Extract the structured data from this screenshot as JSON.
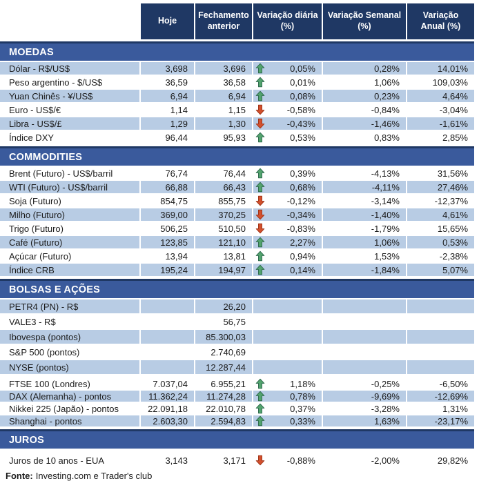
{
  "colors": {
    "header_bg": "#1F3864",
    "band_bg": "#3A5A9C",
    "row_blue": "#B8CCE4",
    "text": "#1B1B1B",
    "arrow_up_fill": "#53A36E",
    "arrow_up_stroke": "#2F6B4E",
    "arrow_down_fill": "#D2502D",
    "arrow_down_stroke": "#A03518"
  },
  "chart_data": {
    "type": "table",
    "columns": [
      "Hoje",
      "Fechamento anterior",
      "Variação diária (%)",
      "Variação Semanal (%)",
      "Variação Anual (%)"
    ],
    "sections": [
      {
        "title": "MOEDAS",
        "rows": [
          {
            "label": "Dólar - R$/US$",
            "hoje": "3,698",
            "fechamento_anterior": "3,696",
            "trend": "up",
            "variacao_diaria": "0,05%",
            "variacao_semanal": "0,28%",
            "variacao_anual": "14,01%",
            "shade": "blue",
            "size": "std"
          },
          {
            "label": "Peso argentino - $/US$",
            "hoje": "36,59",
            "fechamento_anterior": "36,58",
            "trend": "up",
            "variacao_diaria": "0,01%",
            "variacao_semanal": "1,06%",
            "variacao_anual": "109,03%",
            "shade": "white",
            "size": "std"
          },
          {
            "label": "Yuan Chinês - ¥/US$",
            "hoje": "6,94",
            "fechamento_anterior": "6,94",
            "trend": "up",
            "variacao_diaria": "0,08%",
            "variacao_semanal": "0,23%",
            "variacao_anual": "4,64%",
            "shade": "blue",
            "size": "std"
          },
          {
            "label": "Euro - US$/€",
            "hoje": "1,14",
            "fechamento_anterior": "1,15",
            "trend": "down",
            "variacao_diaria": "-0,58%",
            "variacao_semanal": "-0,84%",
            "variacao_anual": "-3,04%",
            "shade": "white",
            "size": "std"
          },
          {
            "label": "Libra - US$/£",
            "hoje": "1,29",
            "fechamento_anterior": "1,30",
            "trend": "down",
            "variacao_diaria": "-0,43%",
            "variacao_semanal": "-1,46%",
            "variacao_anual": "-1,61%",
            "shade": "blue",
            "size": "std"
          },
          {
            "label": "Índice DXY",
            "hoje": "96,44",
            "fechamento_anterior": "95,93",
            "trend": "up",
            "variacao_diaria": "0,53%",
            "variacao_semanal": "0,83%",
            "variacao_anual": "2,85%",
            "shade": "white",
            "size": "std"
          }
        ]
      },
      {
        "title": "COMMODITIES",
        "rows": [
          {
            "label": "Brent (Futuro) - US$/barril",
            "hoje": "76,74",
            "fechamento_anterior": "76,44",
            "trend": "up",
            "variacao_diaria": "0,39%",
            "variacao_semanal": "-4,13%",
            "variacao_anual": "31,56%",
            "shade": "white",
            "size": "std"
          },
          {
            "label": "WTI (Futuro) - US$/barril",
            "hoje": "66,88",
            "fechamento_anterior": "66,43",
            "trend": "up",
            "variacao_diaria": "0,68%",
            "variacao_semanal": "-4,11%",
            "variacao_anual": "27,46%",
            "shade": "blue",
            "size": "std"
          },
          {
            "label": "Soja (Futuro)",
            "hoje": "854,75",
            "fechamento_anterior": "855,75",
            "trend": "down",
            "variacao_diaria": "-0,12%",
            "variacao_semanal": "-3,14%",
            "variacao_anual": "-12,37%",
            "shade": "white",
            "size": "std"
          },
          {
            "label": "Milho (Futuro)",
            "hoje": "369,00",
            "fechamento_anterior": "370,25",
            "trend": "down",
            "variacao_diaria": "-0,34%",
            "variacao_semanal": "-1,40%",
            "variacao_anual": "4,61%",
            "shade": "blue",
            "size": "std"
          },
          {
            "label": "Trigo (Futuro)",
            "hoje": "506,25",
            "fechamento_anterior": "510,50",
            "trend": "down",
            "variacao_diaria": "-0,83%",
            "variacao_semanal": "-1,79%",
            "variacao_anual": "15,65%",
            "shade": "white",
            "size": "std"
          },
          {
            "label": "Café (Futuro)",
            "hoje": "123,85",
            "fechamento_anterior": "121,10",
            "trend": "up",
            "variacao_diaria": "2,27%",
            "variacao_semanal": "1,06%",
            "variacao_anual": "0,53%",
            "shade": "blue",
            "size": "std"
          },
          {
            "label": "Açúcar (Futuro)",
            "hoje": "13,94",
            "fechamento_anterior": "13,81",
            "trend": "up",
            "variacao_diaria": "0,94%",
            "variacao_semanal": "1,53%",
            "variacao_anual": "-2,38%",
            "shade": "white",
            "size": "std"
          },
          {
            "label": "Índice CRB",
            "hoje": "195,24",
            "fechamento_anterior": "194,97",
            "trend": "up",
            "variacao_diaria": "0,14%",
            "variacao_semanal": "-1,84%",
            "variacao_anual": "5,07%",
            "shade": "blue",
            "size": "std"
          }
        ]
      },
      {
        "title": "BOLSAS E AÇÕES",
        "rows": [
          {
            "label": "PETR4 (PN) - R$",
            "hoje": "",
            "fechamento_anterior": "26,20",
            "trend": "",
            "variacao_diaria": "",
            "variacao_semanal": "",
            "variacao_anual": "",
            "shade": "blue",
            "size": "tall"
          },
          {
            "label": "VALE3 - R$",
            "hoje": "",
            "fechamento_anterior": "56,75",
            "trend": "",
            "variacao_diaria": "",
            "variacao_semanal": "",
            "variacao_anual": "",
            "shade": "white",
            "size": "tall"
          },
          {
            "label": "Ibovespa (pontos)",
            "hoje": "",
            "fechamento_anterior": "85.300,03",
            "trend": "",
            "variacao_diaria": "",
            "variacao_semanal": "",
            "variacao_anual": "",
            "shade": "blue",
            "size": "tall"
          },
          {
            "label": "S&P 500 (pontos)",
            "hoje": "",
            "fechamento_anterior": "2.740,69",
            "trend": "",
            "variacao_diaria": "",
            "variacao_semanal": "",
            "variacao_anual": "",
            "shade": "white",
            "size": "tall"
          },
          {
            "label": "NYSE (pontos)",
            "hoje": "",
            "fechamento_anterior": "12.287,44",
            "trend": "",
            "variacao_diaria": "",
            "variacao_semanal": "",
            "variacao_anual": "",
            "shade": "blue",
            "size": "tall",
            "gap_after": true
          },
          {
            "label": "FTSE 100 (Londres)",
            "hoje": "7.037,04",
            "fechamento_anterior": "6.955,21",
            "trend": "up",
            "variacao_diaria": "1,18%",
            "variacao_semanal": "-0,25%",
            "variacao_anual": "-6,50%",
            "shade": "white",
            "size": "compact"
          },
          {
            "label": "DAX (Alemanha) - pontos",
            "hoje": "11.362,24",
            "fechamento_anterior": "11.274,28",
            "trend": "up",
            "variacao_diaria": "0,78%",
            "variacao_semanal": "-9,69%",
            "variacao_anual": "-12,69%",
            "shade": "blue",
            "size": "compact"
          },
          {
            "label": "Nikkei 225 (Japão) - pontos",
            "hoje": "22.091,18",
            "fechamento_anterior": "22.010,78",
            "trend": "up",
            "variacao_diaria": "0,37%",
            "variacao_semanal": "-3,28%",
            "variacao_anual": "1,31%",
            "shade": "white",
            "size": "compact"
          },
          {
            "label": "Shanghai - pontos",
            "hoje": "2.603,30",
            "fechamento_anterior": "2.594,83",
            "trend": "up",
            "variacao_diaria": "0,33%",
            "variacao_semanal": "1,63%",
            "variacao_anual": "-23,17%",
            "shade": "blue",
            "size": "compact"
          }
        ]
      },
      {
        "title": "JUROS",
        "pre_row_gap": true,
        "rows": [
          {
            "label": "Juros de 10 anos - EUA",
            "hoje": "3,143",
            "fechamento_anterior": "3,171",
            "trend": "down",
            "variacao_diaria": "-0,88%",
            "variacao_semanal": "-2,00%",
            "variacao_anual": "29,82%",
            "shade": "white",
            "size": "std"
          }
        ]
      }
    ]
  },
  "footer": {
    "label": "Fonte:",
    "text": "Investing.com e Trader's club"
  }
}
